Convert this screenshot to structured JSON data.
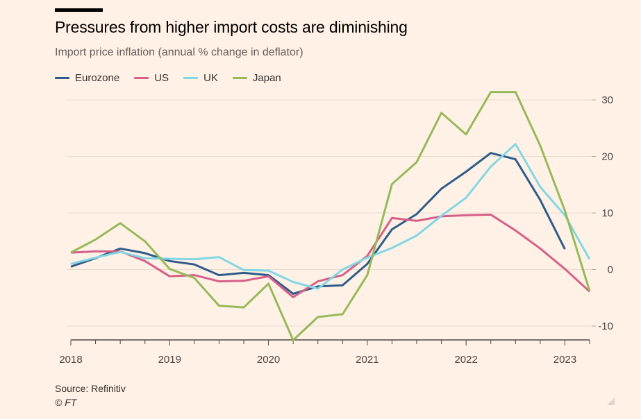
{
  "header": {
    "title": "Pressures from higher import costs are diminishing",
    "subtitle": "Import price inflation (annual % change in deflator)"
  },
  "footer": {
    "source": "Source: Refinitiv",
    "credit": "© FT"
  },
  "colors": {
    "background": "#fff1e5",
    "grid": "#e9dccf",
    "axis": "#4a4643"
  },
  "chart_data": {
    "type": "line",
    "title": "Pressures from higher import costs are diminishing",
    "subtitle": "Import price inflation (annual % change in deflator)",
    "ylabel": "Import price inflation (annual % change in deflator)",
    "ylim": [
      -12.5,
      32
    ],
    "yticks": [
      -10,
      0,
      10,
      20,
      30
    ],
    "xlim": [
      2018,
      2023.25
    ],
    "xticks": [
      2018,
      2019,
      2020,
      2021,
      2022,
      2023
    ],
    "y_axis_position": "right",
    "legend_position": "top-left",
    "series": [
      {
        "name": "Eurozone",
        "color": "#2e5c8a",
        "x": [
          2018,
          2018.25,
          2018.5,
          2018.75,
          2019,
          2019.25,
          2019.5,
          2019.75,
          2020,
          2020.25,
          2020.5,
          2020.75,
          2021,
          2021.25,
          2021.5,
          2021.75,
          2022,
          2022.25,
          2022.5,
          2022.75,
          2023
        ],
        "y": [
          0.5,
          2.0,
          3.7,
          2.9,
          1.5,
          0.9,
          -1.0,
          -0.6,
          -1.0,
          -4.3,
          -3.0,
          -2.8,
          1.0,
          7.1,
          9.8,
          14.3,
          17.3,
          20.6,
          19.5,
          12.3,
          3.6
        ]
      },
      {
        "name": "US",
        "color": "#d65f87",
        "x": [
          2018,
          2018.25,
          2018.5,
          2018.75,
          2019,
          2019.25,
          2019.5,
          2019.75,
          2020,
          2020.25,
          2020.5,
          2020.75,
          2021,
          2021.25,
          2021.5,
          2021.75,
          2022,
          2022.25,
          2022.5,
          2022.75,
          2023,
          2023.25
        ],
        "y": [
          3.0,
          3.2,
          3.2,
          1.5,
          -1.2,
          -1.0,
          -2.1,
          -2.0,
          -1.2,
          -4.9,
          -2.1,
          -1.0,
          2.4,
          9.1,
          8.6,
          9.4,
          9.6,
          9.7,
          6.9,
          3.7,
          0.1,
          -3.9
        ]
      },
      {
        "name": "UK",
        "color": "#82d6e5",
        "x": [
          2018,
          2018.25,
          2018.5,
          2018.75,
          2019,
          2019.25,
          2019.5,
          2019.75,
          2020,
          2020.25,
          2020.5,
          2020.75,
          2021,
          2021.25,
          2021.5,
          2021.75,
          2022,
          2022.25,
          2022.5,
          2022.75,
          2023,
          2023.25
        ],
        "y": [
          1.0,
          2.1,
          3.1,
          2.0,
          1.9,
          1.8,
          2.2,
          -0.1,
          -0.2,
          -2.2,
          -3.4,
          0.0,
          2.1,
          3.8,
          6.0,
          9.5,
          12.7,
          18.2,
          22.2,
          14.6,
          9.6,
          1.8
        ]
      },
      {
        "name": "Japan",
        "color": "#96b95a",
        "x": [
          2018,
          2018.25,
          2018.5,
          2018.75,
          2019,
          2019.25,
          2019.5,
          2019.75,
          2020,
          2020.25,
          2020.5,
          2020.75,
          2021,
          2021.25,
          2021.5,
          2021.75,
          2022,
          2022.25,
          2022.5,
          2022.75,
          2023,
          2023.25
        ],
        "y": [
          3.0,
          5.3,
          8.2,
          5.0,
          0.1,
          -1.5,
          -6.4,
          -6.7,
          -2.5,
          -12.5,
          -8.4,
          -7.9,
          -1.0,
          15.1,
          19.0,
          27.7,
          23.9,
          31.4,
          31.4,
          21.9,
          10.4,
          -3.8
        ]
      }
    ]
  }
}
